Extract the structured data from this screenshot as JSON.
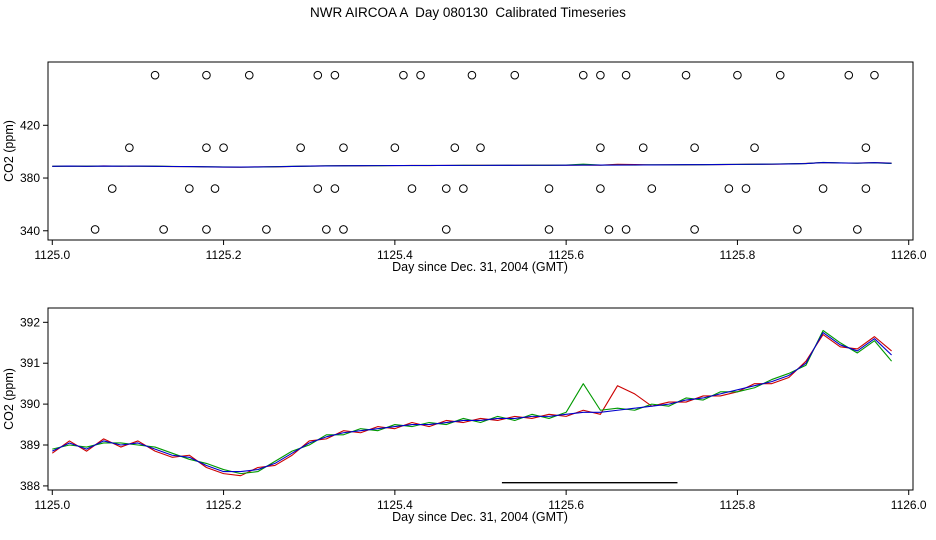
{
  "title": "NWR AIRCOA A  Day 080130  Calibrated Timeseries",
  "chart_data": [
    {
      "type": "scatter",
      "panel": "top",
      "xlabel": "Day since Dec. 31, 2004 (GMT)",
      "ylabel": "CO2 (ppm)",
      "xlim": [
        1124.995,
        1126.005
      ],
      "ylim": [
        333,
        468
      ],
      "xticks": [
        1125.0,
        1125.2,
        1125.4,
        1125.6,
        1125.8,
        1126.0
      ],
      "yticks": [
        340,
        380,
        420
      ],
      "grid": false,
      "legend": "none",
      "scatter_rows": [
        {
          "y": 458,
          "marker": "open-circle",
          "x": [
            1125.12,
            1125.18,
            1125.23,
            1125.31,
            1125.33,
            1125.41,
            1125.43,
            1125.49,
            1125.54,
            1125.62,
            1125.64,
            1125.67,
            1125.74,
            1125.8,
            1125.85,
            1125.93,
            1125.96
          ]
        },
        {
          "y": 403,
          "marker": "open-circle",
          "x": [
            1125.09,
            1125.18,
            1125.2,
            1125.29,
            1125.34,
            1125.4,
            1125.47,
            1125.5,
            1125.64,
            1125.69,
            1125.75,
            1125.82,
            1125.95
          ]
        },
        {
          "y": 372,
          "marker": "open-circle",
          "x": [
            1125.07,
            1125.16,
            1125.19,
            1125.31,
            1125.33,
            1125.42,
            1125.46,
            1125.48,
            1125.58,
            1125.64,
            1125.7,
            1125.79,
            1125.81,
            1125.9,
            1125.95
          ]
        },
        {
          "y": 341,
          "marker": "open-circle",
          "x": [
            1125.05,
            1125.13,
            1125.18,
            1125.25,
            1125.32,
            1125.34,
            1125.46,
            1125.58,
            1125.65,
            1125.67,
            1125.75,
            1125.87,
            1125.94
          ]
        }
      ],
      "uses_shared_series": true,
      "segments": []
    },
    {
      "type": "line",
      "panel": "bottom",
      "xlabel": "Day since Dec. 31, 2004 (GMT)",
      "ylabel": "CO2 (ppm)",
      "xlim": [
        1124.995,
        1126.005
      ],
      "ylim": [
        387.9,
        392.35
      ],
      "xticks": [
        1125.0,
        1125.2,
        1125.4,
        1125.6,
        1125.8,
        1126.0
      ],
      "yticks": [
        388,
        389,
        390,
        391,
        392
      ],
      "grid": false,
      "legend": "none",
      "scatter_rows": [],
      "uses_shared_series": true,
      "segments": [
        {
          "x1": 1125.525,
          "x2": 1125.73,
          "y": 388.08
        }
      ]
    }
  ],
  "shared_series": {
    "x": [
      1125.0,
      1125.02,
      1125.04,
      1125.06,
      1125.08,
      1125.1,
      1125.12,
      1125.14,
      1125.16,
      1125.18,
      1125.2,
      1125.22,
      1125.24,
      1125.26,
      1125.28,
      1125.3,
      1125.32,
      1125.34,
      1125.36,
      1125.38,
      1125.4,
      1125.42,
      1125.44,
      1125.46,
      1125.48,
      1125.5,
      1125.52,
      1125.54,
      1125.56,
      1125.58,
      1125.6,
      1125.62,
      1125.64,
      1125.66,
      1125.68,
      1125.7,
      1125.72,
      1125.74,
      1125.76,
      1125.78,
      1125.8,
      1125.82,
      1125.84,
      1125.86,
      1125.88,
      1125.9,
      1125.92,
      1125.94,
      1125.96,
      1125.98
    ],
    "series": [
      {
        "name": "red",
        "color": "#cc0000",
        "values": [
          388.8,
          389.1,
          388.85,
          389.15,
          388.95,
          389.1,
          388.85,
          388.7,
          388.75,
          388.45,
          388.3,
          388.25,
          388.45,
          388.5,
          388.75,
          389.1,
          389.15,
          389.35,
          389.3,
          389.45,
          389.4,
          389.55,
          389.45,
          389.6,
          389.55,
          389.65,
          389.6,
          389.7,
          389.65,
          389.75,
          389.7,
          389.85,
          389.75,
          390.45,
          390.25,
          389.95,
          390.05,
          390.05,
          390.2,
          390.2,
          390.3,
          390.5,
          390.5,
          390.65,
          391.05,
          391.7,
          391.4,
          391.35,
          391.65,
          391.3
        ]
      },
      {
        "name": "green",
        "color": "#009900",
        "values": [
          388.9,
          389.0,
          388.95,
          389.05,
          389.05,
          389.0,
          388.95,
          388.8,
          388.65,
          388.55,
          388.4,
          388.3,
          388.35,
          388.6,
          388.85,
          389.0,
          389.25,
          389.25,
          389.4,
          389.35,
          389.5,
          389.45,
          389.55,
          389.5,
          389.65,
          389.55,
          389.7,
          389.6,
          389.75,
          389.65,
          389.8,
          390.5,
          389.85,
          389.9,
          389.85,
          390.0,
          389.95,
          390.15,
          390.1,
          390.3,
          390.3,
          390.4,
          390.6,
          390.75,
          390.95,
          391.8,
          391.5,
          391.25,
          391.55,
          391.05
        ]
      },
      {
        "name": "blue",
        "color": "#0000cc",
        "values": [
          388.85,
          389.05,
          388.9,
          389.1,
          389.0,
          389.05,
          388.9,
          388.75,
          388.7,
          388.5,
          388.35,
          388.35,
          388.4,
          388.55,
          388.8,
          389.05,
          389.2,
          389.3,
          389.35,
          389.4,
          389.45,
          389.5,
          389.5,
          389.55,
          389.6,
          389.6,
          389.65,
          389.65,
          389.7,
          389.7,
          389.75,
          389.8,
          389.8,
          389.85,
          389.9,
          389.95,
          390.0,
          390.1,
          390.15,
          390.25,
          390.35,
          390.45,
          390.55,
          390.7,
          391.0,
          391.75,
          391.45,
          391.3,
          391.6,
          391.2
        ]
      }
    ]
  },
  "colors": {
    "axis": "#000000",
    "background": "#ffffff"
  }
}
